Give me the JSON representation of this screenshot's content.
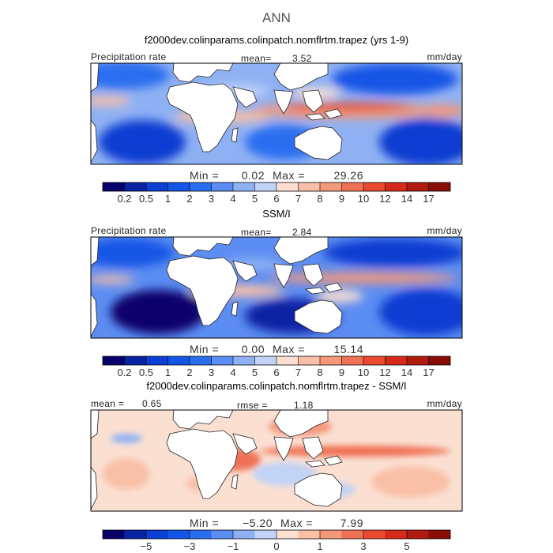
{
  "title": "ANN",
  "palettes": {
    "precip": [
      "#08006b",
      "#0a23a3",
      "#0b3ed2",
      "#1355e6",
      "#2a6ef0",
      "#5b8df2",
      "#8fb1f3",
      "#c1d3f6",
      "#fbe0d2",
      "#f9c0a7",
      "#f4987a",
      "#ef7155",
      "#e8492f",
      "#d52a19",
      "#b01a0f",
      "#8a0d05"
    ],
    "diff": [
      "#08006b",
      "#0a23a3",
      "#0b3ed2",
      "#1355e6",
      "#2a6ef0",
      "#5b8df2",
      "#8fb1f3",
      "#c1d3f6",
      "#fbe0d2",
      "#f9c0a7",
      "#f4987a",
      "#ef7155",
      "#e8492f",
      "#d52a19",
      "#b01a0f",
      "#8a0d05"
    ]
  },
  "panels": [
    {
      "id": "model",
      "subtitle": "f2000dev.colinparams.colinpatch.nomflrtm.trapez (yrs 1-9)",
      "left_label": "Precipitation rate",
      "center_label": "mean=",
      "center_value": "3.52",
      "right_label": "mm/day",
      "min_label": "Min =",
      "min_value": "0.02",
      "max_label": "Max =",
      "max_value": "29.26",
      "ticks": [
        "0.2",
        "0.5",
        "1",
        "2",
        "3",
        "4",
        "5",
        "6",
        "7",
        "8",
        "9",
        "10",
        "12",
        "14",
        "17"
      ]
    },
    {
      "id": "obs",
      "subtitle": "SSM/I",
      "left_label": "Precipitation rate",
      "center_label": "mean=",
      "center_value": "2.84",
      "right_label": "mm/day",
      "min_label": "Min =",
      "min_value": "0.00",
      "max_label": "Max =",
      "max_value": "15.14",
      "ticks": [
        "0.2",
        "0.5",
        "1",
        "2",
        "3",
        "4",
        "5",
        "6",
        "7",
        "8",
        "9",
        "10",
        "12",
        "14",
        "17"
      ]
    },
    {
      "id": "diff",
      "subtitle": "f2000dev.colinparams.colinpatch.nomflrtm.trapez - SSM/I",
      "left_label": "mean =",
      "left_value": "0.65",
      "center_label": "rmse =",
      "center_value": "1.18",
      "right_label": "mm/day",
      "min_label": "Min =",
      "min_value": "−5.20",
      "max_label": "Max =",
      "max_value": "7.99",
      "ticks": [
        "−5",
        "−3",
        "−1",
        "0",
        "1",
        "3",
        "5"
      ]
    }
  ],
  "chart_data": [
    {
      "type": "heatmap",
      "title": "f2000dev.colinparams.colinpatch.nomflrtm.trapez (yrs 1-9)",
      "variable": "Precipitation rate",
      "units": "mm/day",
      "mean": 3.52,
      "min": 0.02,
      "max": 29.26,
      "contour_levels": [
        0.2,
        0.5,
        1,
        2,
        3,
        4,
        5,
        6,
        7,
        8,
        9,
        10,
        12,
        14,
        17
      ]
    },
    {
      "type": "heatmap",
      "title": "SSM/I",
      "variable": "Precipitation rate",
      "units": "mm/day",
      "mean": 2.84,
      "min": 0.0,
      "max": 15.14,
      "contour_levels": [
        0.2,
        0.5,
        1,
        2,
        3,
        4,
        5,
        6,
        7,
        8,
        9,
        10,
        12,
        14,
        17
      ]
    },
    {
      "type": "heatmap",
      "title": "f2000dev.colinparams.colinpatch.nomflrtm.trapez - SSM/I",
      "units": "mm/day",
      "mean": 0.65,
      "rmse": 1.18,
      "min": -5.2,
      "max": 7.99,
      "contour_levels": [
        -5,
        -3,
        -1,
        0,
        1,
        3,
        5
      ]
    }
  ]
}
